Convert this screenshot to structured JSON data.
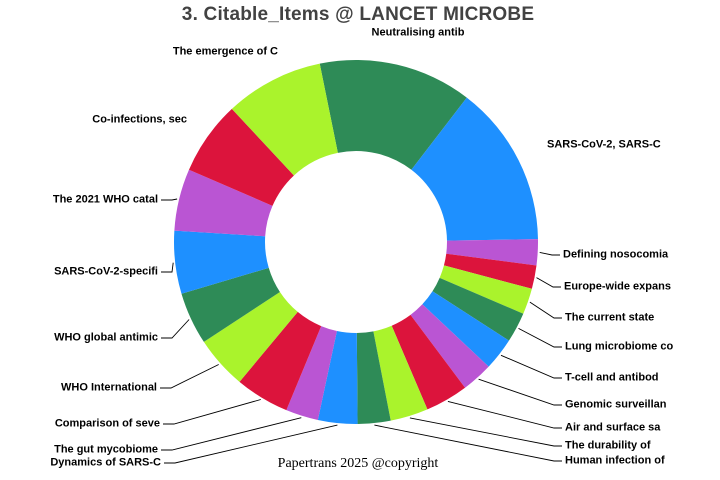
{
  "chart_data": {
    "type": "pie",
    "subtype": "donut",
    "title": "3. Citable_Items @ LANCET MICROBE",
    "footer": "Papertrans 2025 @copyright",
    "legend_position": "none",
    "labels_style": "callout labels around ring with leader lines",
    "start_angle_deg_from_12oclock": -11.5,
    "direction": "clockwise",
    "value_unit": "angular share in degrees (no numeric values printed on chart)",
    "donut_hole_ratio": 0.5,
    "palette_cycle": [
      "#2E8B57",
      "#1E90FF",
      "#BA55D3",
      "#DC143C",
      "#AAF32C"
    ],
    "slices": [
      {
        "label": "Neutralising antib",
        "color": "#2E8B57",
        "angle_deg": 49.0
      },
      {
        "label": "SARS-CoV-2, SARS-C",
        "color": "#1E90FF",
        "angle_deg": 51.6
      },
      {
        "label": "Defining nosocomia",
        "color": "#BA55D3",
        "angle_deg": 8.3
      },
      {
        "label": "Europe-wide expans",
        "color": "#DC143C",
        "angle_deg": 7.5
      },
      {
        "label": "The current state",
        "color": "#AAF32C",
        "angle_deg": 8.3
      },
      {
        "label": "Lung microbiome co",
        "color": "#2E8B57",
        "angle_deg": 9.6
      },
      {
        "label": "T-cell and antibod",
        "color": "#1E90FF",
        "angle_deg": 10.4
      },
      {
        "label": "Genomic surveillan",
        "color": "#BA55D3",
        "angle_deg": 10.0
      },
      {
        "label": "Air and surface sa",
        "color": "#DC143C",
        "angle_deg": 13.7
      },
      {
        "label": "The durability of",
        "color": "#AAF32C",
        "angle_deg": 12.1
      },
      {
        "label": "Human infection of",
        "color": "#2E8B57",
        "angle_deg": 10.5
      },
      {
        "label": "Dynamics of SARS-C",
        "color": "#1E90FF",
        "angle_deg": 12.6
      },
      {
        "label": "The gut mycobiome",
        "color": "#BA55D3",
        "angle_deg": 10.4
      },
      {
        "label": "Comparison of seve",
        "color": "#DC143C",
        "angle_deg": 17.3
      },
      {
        "label": "WHO International",
        "color": "#AAF32C",
        "angle_deg": 16.9
      },
      {
        "label": "WHO global antimic",
        "color": "#2E8B57",
        "angle_deg": 16.8
      },
      {
        "label": "SARS-CoV-2-specifi",
        "color": "#1E90FF",
        "angle_deg": 20.1
      },
      {
        "label": "The 2021 WHO catal",
        "color": "#BA55D3",
        "angle_deg": 19.8
      },
      {
        "label": "Co-infections, sec",
        "color": "#DC143C",
        "angle_deg": 23.6
      },
      {
        "label": "The emergence of C",
        "color": "#AAF32C",
        "angle_deg": 31.5
      }
    ]
  }
}
